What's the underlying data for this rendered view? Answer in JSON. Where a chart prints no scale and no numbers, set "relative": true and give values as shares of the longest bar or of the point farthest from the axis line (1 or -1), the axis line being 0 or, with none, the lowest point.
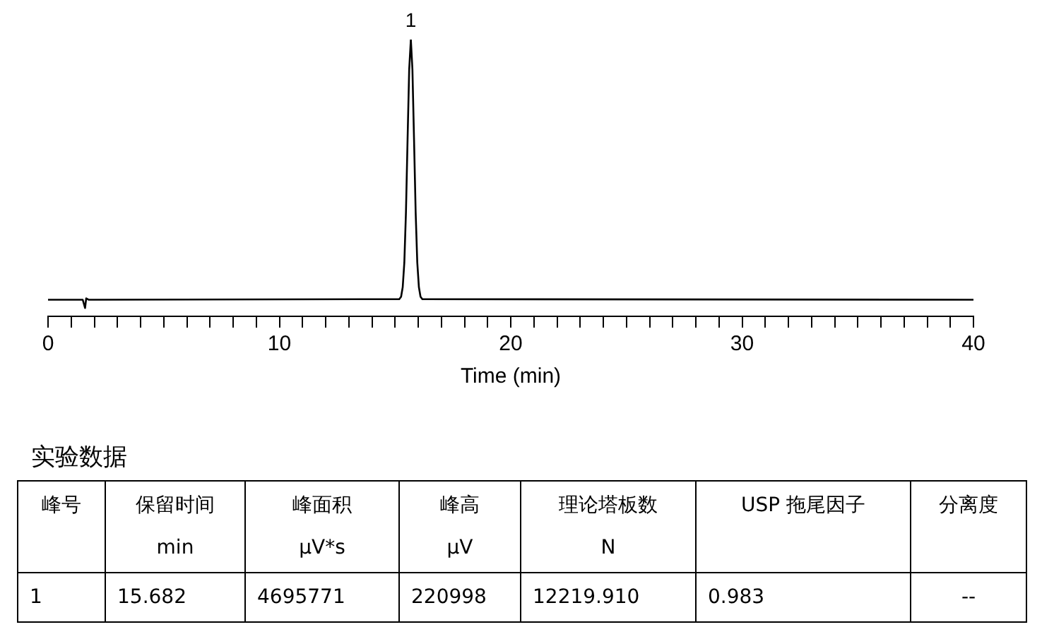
{
  "chart_data": {
    "type": "line",
    "relative": true,
    "xlabel": "Time (min)",
    "color": "#000000",
    "marker": "none",
    "line_style": "solid",
    "grid": false,
    "legend": false,
    "xlim": [
      0,
      40
    ],
    "xticks": [
      0,
      {
        "value": 1,
        "label": null
      },
      {
        "value": 2,
        "label": null
      },
      {
        "value": 3,
        "label": null
      },
      {
        "value": 4,
        "label": null
      },
      {
        "value": 5,
        "label": null
      },
      {
        "value": 6,
        "label": null
      },
      {
        "value": 7,
        "label": null
      },
      {
        "value": 8,
        "label": null
      },
      {
        "value": 9,
        "label": null
      },
      10,
      {
        "value": 11,
        "label": null
      },
      {
        "value": 12,
        "label": null
      },
      {
        "value": 13,
        "label": null
      },
      {
        "value": 14,
        "label": null
      },
      {
        "value": 15,
        "label": null
      },
      {
        "value": 16,
        "label": null
      },
      {
        "value": 17,
        "label": null
      },
      {
        "value": 18,
        "label": null
      },
      {
        "value": 19,
        "label": null
      },
      20,
      {
        "value": 21,
        "label": null
      },
      {
        "value": 22,
        "label": null
      },
      {
        "value": 23,
        "label": null
      },
      {
        "value": 24,
        "label": null
      },
      {
        "value": 25,
        "label": null
      },
      {
        "value": 26,
        "label": null
      },
      {
        "value": 27,
        "label": null
      },
      {
        "value": 28,
        "label": null
      },
      {
        "value": 29,
        "label": null
      },
      30,
      {
        "value": 31,
        "label": null
      },
      {
        "value": 32,
        "label": null
      },
      {
        "value": 33,
        "label": null
      },
      {
        "value": 34,
        "label": null
      },
      {
        "value": 35,
        "label": null
      },
      {
        "value": 36,
        "label": null
      },
      {
        "value": 37,
        "label": null
      },
      {
        "value": 38,
        "label": null
      },
      {
        "value": 39,
        "label": null
      },
      40
    ],
    "x": [
      0,
      1.5,
      1.6,
      1.65,
      1.75,
      2,
      15.18,
      15.26,
      15.33,
      15.4,
      15.47,
      15.54,
      15.61,
      15.682,
      15.75,
      15.82,
      15.89,
      15.96,
      16.03,
      16.1,
      16.18,
      40
    ],
    "values": [
      0.06,
      0.06,
      0.03,
      0.065,
      0.06,
      0.06,
      0.062,
      0.071,
      0.105,
      0.194,
      0.375,
      0.638,
      0.892,
      1,
      0.892,
      0.638,
      0.375,
      0.194,
      0.105,
      0.071,
      0.062,
      0.06
    ],
    "annotations": [
      {
        "text": "1",
        "x": 15.682,
        "y": 1
      },
      "实验数据",
      "峰号",
      "保留时间\nmin",
      "峰面积\nμV*s",
      "峰高\nμV",
      "理论塔板数\nN",
      "USP 拖尾因子",
      "分离度",
      "1",
      "15.682",
      "4695771",
      "220998",
      "12219.910",
      "0.983",
      "--"
    ]
  }
}
